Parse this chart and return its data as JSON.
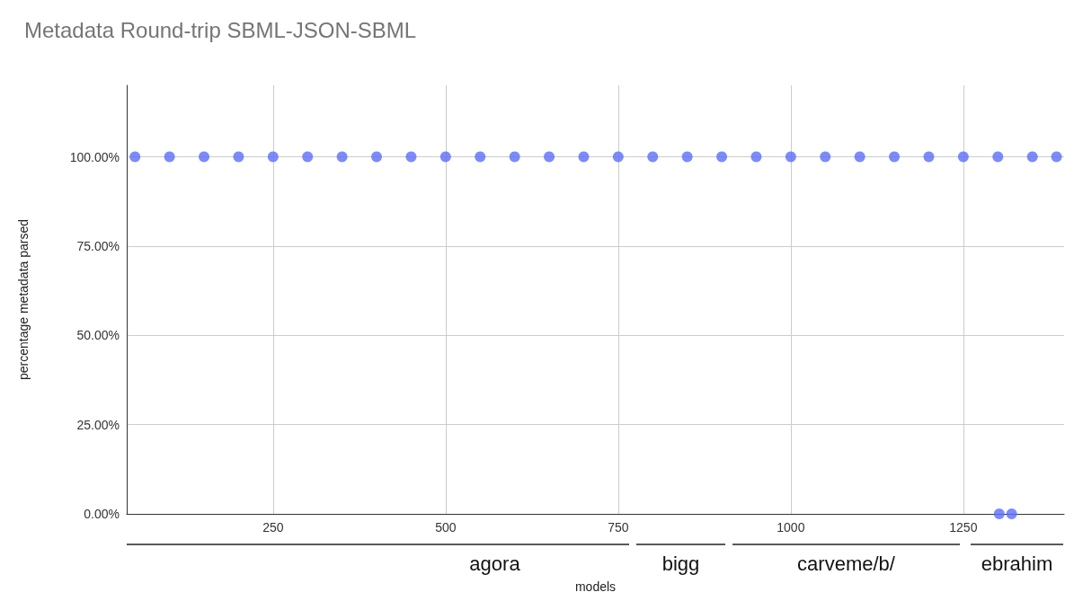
{
  "chart_data": {
    "type": "scatter",
    "title": "Metadata Round-trip SBML-JSON-SBML",
    "xlabel": "models",
    "ylabel": "percentage metadata parsed",
    "x": [
      50,
      100,
      150,
      200,
      250,
      300,
      350,
      400,
      450,
      500,
      550,
      600,
      650,
      700,
      750,
      800,
      850,
      900,
      950,
      1000,
      1050,
      1100,
      1150,
      1200,
      1250,
      1300,
      1350,
      1385,
      1302,
      1320
    ],
    "values": [
      100,
      100,
      100,
      100,
      100,
      100,
      100,
      100,
      100,
      100,
      100,
      100,
      100,
      100,
      100,
      100,
      100,
      100,
      100,
      100,
      100,
      100,
      100,
      100,
      100,
      100,
      100,
      100,
      0,
      0
    ],
    "color": "#5b6ef5",
    "marker": "circle",
    "grid": true,
    "xlim": [
      38,
      1396
    ],
    "xticks": [
      250,
      500,
      750,
      1000,
      1250
    ],
    "ylim": [
      0,
      120
    ],
    "yticks": [
      {
        "value": 0,
        "label": "0.00%"
      },
      {
        "value": 25,
        "label": "25.00%"
      },
      {
        "value": 50,
        "label": "50.00%"
      },
      {
        "value": 75,
        "label": "75.00%"
      },
      {
        "value": 100,
        "label": "100.00%"
      }
    ],
    "annotations": [
      "agora",
      "bigg",
      "carveme/b/",
      "ebrahim"
    ]
  }
}
